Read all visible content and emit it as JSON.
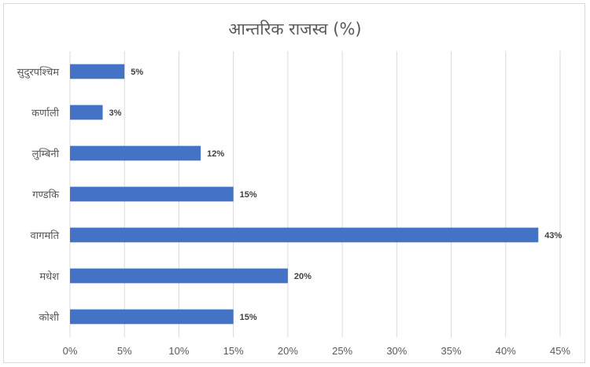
{
  "chart_data": {
    "type": "bar",
    "orientation": "horizontal",
    "title": "आन्तरिक राजस्व (%)",
    "categories": [
      "सुदुरपश्चिम",
      "कर्णाली",
      "लुम्बिनी",
      "गण्डकि",
      "वागमति",
      "मधेश",
      "कोशी"
    ],
    "values": [
      5,
      3,
      12,
      15,
      43,
      20,
      15
    ],
    "data_labels": [
      "5%",
      "3%",
      "12%",
      "15%",
      "43%",
      "20%",
      "15%"
    ],
    "xlim": [
      0,
      45
    ],
    "x_ticks": [
      "0%",
      "5%",
      "10%",
      "15%",
      "20%",
      "25%",
      "30%",
      "35%",
      "40%",
      "45%"
    ],
    "grid": "vertical",
    "legend": "none",
    "colors": {
      "bar": "#4472C4",
      "grid": "#d9d9d9",
      "text": "#595959"
    }
  }
}
